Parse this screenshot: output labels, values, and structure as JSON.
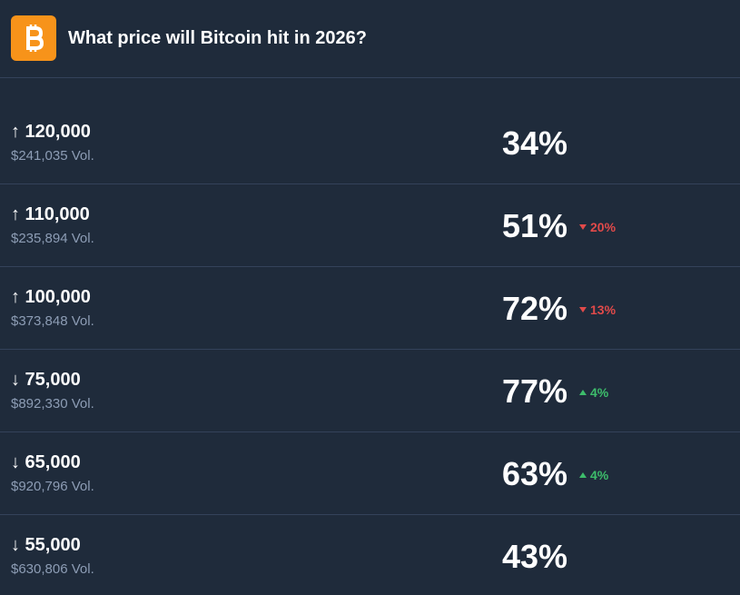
{
  "header": {
    "title": "What price will Bitcoin hit in 2026?"
  },
  "rows": [
    {
      "label": "↑ 120,000",
      "volume": "$241,035 Vol.",
      "percent": "34%",
      "change": null
    },
    {
      "label": "↑ 110,000",
      "volume": "$235,894 Vol.",
      "percent": "51%",
      "change": {
        "direction": "down",
        "text": "20%"
      }
    },
    {
      "label": "↑ 100,000",
      "volume": "$373,848 Vol.",
      "percent": "72%",
      "change": {
        "direction": "down",
        "text": "13%"
      }
    },
    {
      "label": "↓ 75,000",
      "volume": "$892,330 Vol.",
      "percent": "77%",
      "change": {
        "direction": "up",
        "text": "4%"
      }
    },
    {
      "label": "↓ 65,000",
      "volume": "$920,796 Vol.",
      "percent": "63%",
      "change": {
        "direction": "up",
        "text": "4%"
      }
    },
    {
      "label": "↓ 55,000",
      "volume": "$630,806 Vol.",
      "percent": "43%",
      "change": null
    }
  ]
}
